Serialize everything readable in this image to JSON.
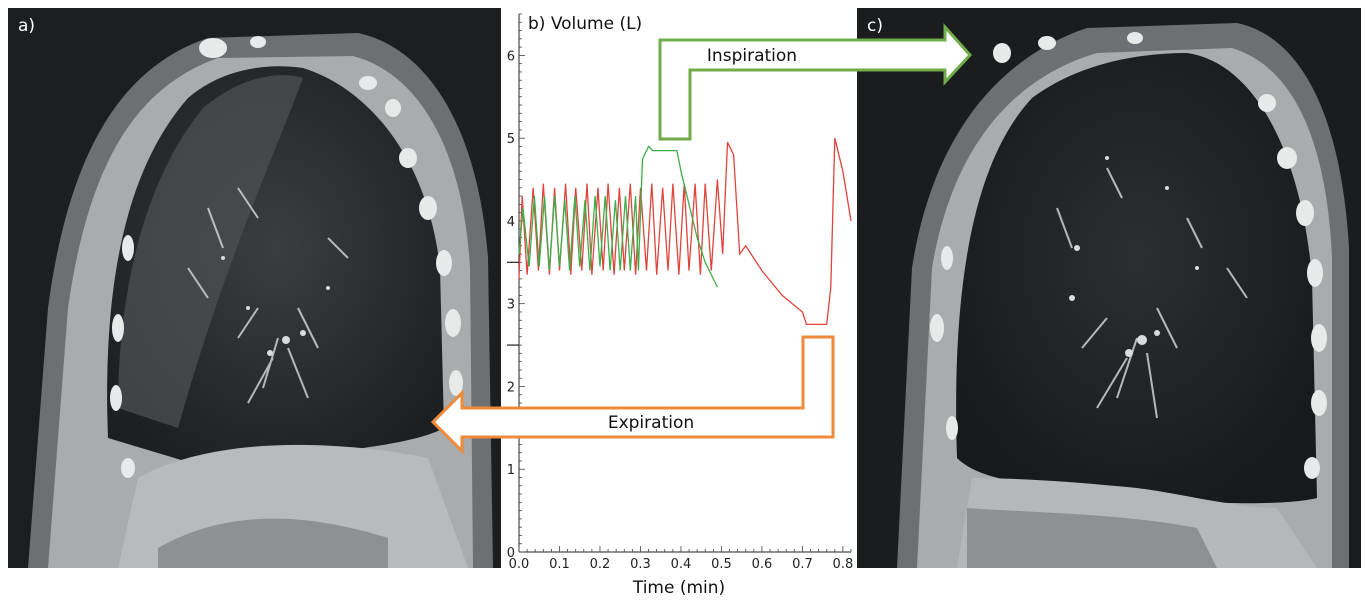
{
  "panels": {
    "a": {
      "label": "a)"
    },
    "b": {
      "label": "b) Volume (L)"
    },
    "c": {
      "label": "c)"
    }
  },
  "annotations": {
    "inspiration": "Inspiration",
    "expiration": "Expiration"
  },
  "colors": {
    "green": "#6fad4a",
    "orange": "#ee8a3a",
    "red_series": "#e0443c",
    "green_series": "#3fae49"
  },
  "chart_data": {
    "type": "line",
    "title": "b) Volume (L)",
    "xlabel": "Time (min)",
    "ylabel": "",
    "xlim": [
      0.0,
      0.82
    ],
    "ylim": [
      0,
      6.5
    ],
    "x_ticks": [
      "0.0",
      "0.1",
      "0.2",
      "0.3",
      "0.4",
      "0.5",
      "0.6",
      "0.7",
      "0.8"
    ],
    "y_ticks": [
      "0",
      "1",
      "2",
      "3",
      "4",
      "5",
      "6"
    ],
    "series": [
      {
        "color": "#e0443c",
        "x": [
          0.0,
          0.008,
          0.02,
          0.035,
          0.048,
          0.06,
          0.075,
          0.088,
          0.1,
          0.115,
          0.128,
          0.14,
          0.155,
          0.168,
          0.18,
          0.195,
          0.208,
          0.22,
          0.235,
          0.248,
          0.26,
          0.275,
          0.288,
          0.3,
          0.315,
          0.328,
          0.34,
          0.355,
          0.368,
          0.38,
          0.395,
          0.408,
          0.42,
          0.435,
          0.448,
          0.46,
          0.475,
          0.49,
          0.503,
          0.515,
          0.53,
          0.545,
          0.56,
          0.6,
          0.65,
          0.7,
          0.71,
          0.76,
          0.77,
          0.78,
          0.8,
          0.82
        ],
        "y": [
          3.3,
          4.3,
          3.35,
          4.4,
          3.4,
          4.45,
          3.35,
          4.4,
          3.4,
          4.45,
          3.35,
          4.4,
          3.4,
          4.45,
          3.35,
          4.4,
          3.4,
          4.45,
          3.35,
          4.4,
          3.4,
          4.45,
          3.35,
          4.4,
          3.4,
          4.45,
          3.35,
          4.4,
          3.4,
          4.45,
          3.35,
          4.45,
          3.4,
          4.45,
          3.35,
          4.45,
          3.4,
          4.5,
          3.6,
          4.95,
          4.8,
          3.6,
          3.7,
          3.4,
          3.1,
          2.9,
          2.75,
          2.75,
          3.2,
          5.0,
          4.6,
          4.0
        ]
      },
      {
        "color": "#3fae49",
        "x": [
          0.0,
          0.01,
          0.025,
          0.038,
          0.05,
          0.063,
          0.075,
          0.088,
          0.1,
          0.113,
          0.125,
          0.138,
          0.15,
          0.163,
          0.175,
          0.188,
          0.2,
          0.213,
          0.225,
          0.238,
          0.25,
          0.263,
          0.275,
          0.288,
          0.295,
          0.305,
          0.32,
          0.33,
          0.39,
          0.4,
          0.44,
          0.46,
          0.49
        ],
        "y": [
          3.6,
          4.15,
          3.45,
          4.3,
          3.45,
          4.3,
          3.4,
          4.3,
          3.45,
          4.25,
          3.4,
          4.3,
          3.45,
          4.25,
          3.4,
          4.3,
          3.45,
          4.3,
          3.4,
          4.25,
          3.4,
          4.3,
          3.4,
          4.3,
          3.4,
          4.75,
          4.9,
          4.85,
          4.85,
          4.6,
          3.8,
          3.5,
          3.2
        ]
      }
    ]
  }
}
